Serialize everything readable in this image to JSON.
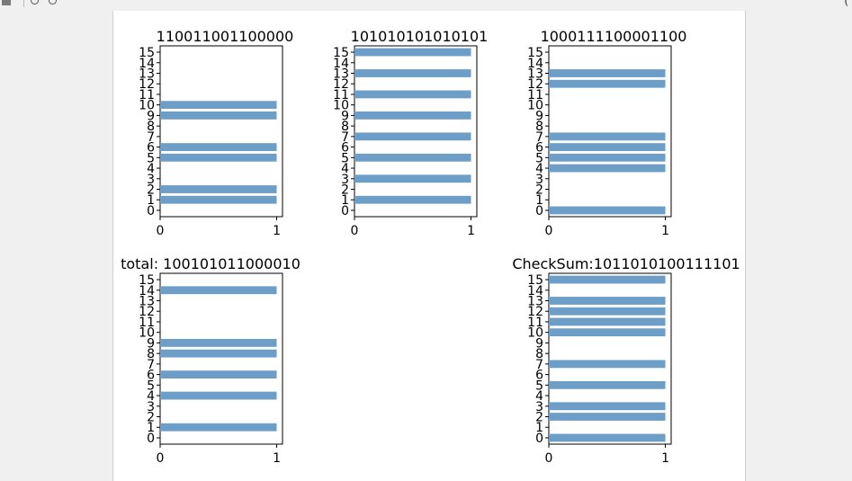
{
  "toolbar": {
    "home_icon": "home-icon",
    "back_icon": "back-icon",
    "forward_icon": "forward-icon",
    "coords_readout": "("
  },
  "colors": {
    "bar": "#6d9ec7",
    "axis": "#000000"
  },
  "chart_data": [
    {
      "type": "bar",
      "orientation": "horizontal",
      "title": "110011001100000",
      "categories": [
        0,
        1,
        2,
        3,
        4,
        5,
        6,
        7,
        8,
        9,
        10,
        11,
        12,
        13,
        14,
        15
      ],
      "values": [
        0,
        1,
        1,
        0,
        0,
        1,
        1,
        0,
        0,
        1,
        1,
        0,
        0,
        0,
        0,
        0
      ],
      "xlim": [
        0,
        1.05
      ],
      "xticks": [
        0,
        1
      ],
      "yticks": [
        0,
        1,
        2,
        3,
        4,
        5,
        6,
        7,
        8,
        9,
        10,
        11,
        12,
        13,
        14,
        15
      ],
      "grid": false
    },
    {
      "type": "bar",
      "orientation": "horizontal",
      "title": "101010101010101",
      "categories": [
        0,
        1,
        2,
        3,
        4,
        5,
        6,
        7,
        8,
        9,
        10,
        11,
        12,
        13,
        14,
        15
      ],
      "values": [
        0,
        1,
        0,
        1,
        0,
        1,
        0,
        1,
        0,
        1,
        0,
        1,
        0,
        1,
        0,
        1
      ],
      "xlim": [
        0,
        1.05
      ],
      "xticks": [
        0,
        1
      ],
      "yticks": [
        0,
        1,
        2,
        3,
        4,
        5,
        6,
        7,
        8,
        9,
        10,
        11,
        12,
        13,
        14,
        15
      ],
      "grid": false
    },
    {
      "type": "bar",
      "orientation": "horizontal",
      "title": "1000111100001100",
      "categories": [
        0,
        1,
        2,
        3,
        4,
        5,
        6,
        7,
        8,
        9,
        10,
        11,
        12,
        13,
        14,
        15
      ],
      "values": [
        1,
        0,
        0,
        0,
        1,
        1,
        1,
        1,
        0,
        0,
        0,
        0,
        1,
        1,
        0,
        0
      ],
      "xlim": [
        0,
        1.05
      ],
      "xticks": [
        0,
        1
      ],
      "yticks": [
        0,
        1,
        2,
        3,
        4,
        5,
        6,
        7,
        8,
        9,
        10,
        11,
        12,
        13,
        14,
        15
      ],
      "grid": false
    },
    {
      "type": "bar",
      "orientation": "horizontal",
      "title": "total: 100101011000010",
      "categories": [
        0,
        1,
        2,
        3,
        4,
        5,
        6,
        7,
        8,
        9,
        10,
        11,
        12,
        13,
        14,
        15
      ],
      "values": [
        0,
        1,
        0,
        0,
        1,
        0,
        1,
        0,
        1,
        1,
        0,
        0,
        0,
        0,
        1,
        0
      ],
      "xlim": [
        0,
        1.05
      ],
      "xticks": [
        0,
        1
      ],
      "yticks": [
        0,
        1,
        2,
        3,
        4,
        5,
        6,
        7,
        8,
        9,
        10,
        11,
        12,
        13,
        14,
        15
      ],
      "grid": false
    },
    {
      "type": "bar",
      "orientation": "horizontal",
      "title": "CheckSum:1011010100111101",
      "categories": [
        0,
        1,
        2,
        3,
        4,
        5,
        6,
        7,
        8,
        9,
        10,
        11,
        12,
        13,
        14,
        15
      ],
      "values": [
        1,
        0,
        1,
        1,
        0,
        1,
        0,
        1,
        0,
        0,
        1,
        1,
        1,
        1,
        0,
        1
      ],
      "xlim": [
        0,
        1.05
      ],
      "xticks": [
        0,
        1
      ],
      "yticks": [
        0,
        1,
        2,
        3,
        4,
        5,
        6,
        7,
        8,
        9,
        10,
        11,
        12,
        13,
        14,
        15
      ],
      "grid": false
    }
  ]
}
